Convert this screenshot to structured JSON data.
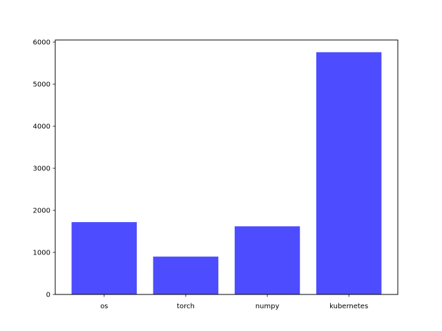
{
  "chart_data": {
    "type": "bar",
    "title": "",
    "xlabel": "",
    "ylabel": "",
    "categories": [
      "os",
      "torch",
      "numpy",
      "kubernetes"
    ],
    "values": [
      1720,
      900,
      1620,
      5760
    ],
    "ylim": [
      0,
      6050
    ],
    "yticks": [
      0,
      1000,
      2000,
      3000,
      4000,
      5000,
      6000
    ],
    "grid": false,
    "legend": "none",
    "colors": {
      "bar": "#4d4dff",
      "axis": "#000000",
      "background": "#ffffff"
    }
  }
}
